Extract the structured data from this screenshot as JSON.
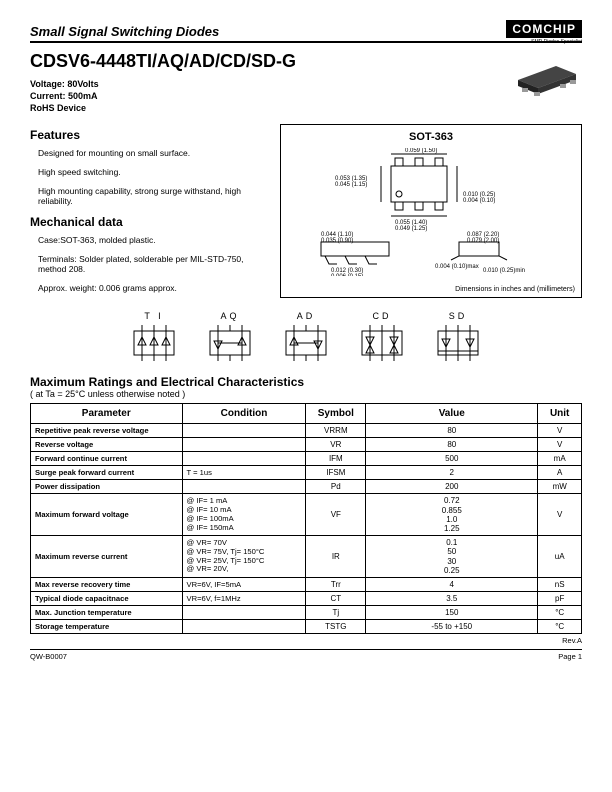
{
  "brand": {
    "logo": "COMCHIP",
    "tagline": "SMD Diodes Specialist"
  },
  "category": "Small Signal Switching Diodes",
  "part_number": "CDSV6-4448TI/AQ/AD/CD/SD-G",
  "specs": {
    "voltage": "Voltage: 80Volts",
    "current": "Current: 500mA",
    "rohs": "RoHS Device"
  },
  "features": {
    "heading": "Features",
    "items": [
      "Designed for mounting on small surface.",
      "High speed switching.",
      "High mounting capability, strong surge withstand, high reliability."
    ]
  },
  "mech": {
    "heading": "Mechanical data",
    "items": [
      "Case:SOT-363,  molded plastic.",
      "Terminals: Solder plated, solderable per MIL-STD-750, method 208.",
      "Approx. weight: 0.006 grams approx."
    ]
  },
  "package": {
    "title": "SOT-363",
    "footnote": "Dimensions in inches and (millimeters)",
    "dims": {
      "top_w": "0.067 (1.70)\n0.059 (1.50)",
      "left_h": "0.053 (1.35)\n0.045 (1.15)",
      "bot_w": "0.055 (1.40)\n0.049 (1.25)",
      "right_p": "0.010 (0.25)\n0.004 (0.10)",
      "side_l1": "0.044 (1.10)\n0.035 (0.90)",
      "side_l2": "0.087 (2.20)\n0.079 (2.00)",
      "foot1": "0.012 (0.30)\n0.006 (0.15)",
      "foot2": "0.004 (0.10)max\n0.010 (0.25)min"
    }
  },
  "variants": {
    "labels": [
      "T I",
      "AQ",
      "AD",
      "CD",
      "SD"
    ]
  },
  "ratings": {
    "heading": "Maximum Ratings and Electrical Characteristics",
    "sub": "( at Ta = 25°C unless otherwise noted )",
    "columns": [
      "Parameter",
      "Condition",
      "Symbol",
      "Value",
      "Unit"
    ],
    "rows": [
      {
        "p": "Repetitive peak reverse voltage",
        "c": "",
        "s": "VRRM",
        "v": "80",
        "u": "V"
      },
      {
        "p": "Reverse voltage",
        "c": "",
        "s": "VR",
        "v": "80",
        "u": "V"
      },
      {
        "p": "Forward continue current",
        "c": "",
        "s": "IFM",
        "v": "500",
        "u": "mA"
      },
      {
        "p": "Surge peak forward current",
        "c": "T = 1us",
        "s": "IFSM",
        "v": "2",
        "u": "A"
      },
      {
        "p": "Power dissipation",
        "c": "",
        "s": "Pd",
        "v": "200",
        "u": "mW"
      },
      {
        "p": "Maximum forward voltage",
        "c": "@ IF= 1 mA\n@ IF= 10 mA\n@ IF= 100mA\n@ IF= 150mA",
        "s": "VF",
        "v": "0.72\n0.855\n1.0\n1.25",
        "u": "V"
      },
      {
        "p": "Maximum reverse current",
        "c": "@ VR= 70V\n@ VR= 75V, Tj= 150°C\n@ VR= 25V, Tj= 150°C\n@ VR= 20V,",
        "s": "IR",
        "v": "0.1\n50\n30\n0.25",
        "u": "uA"
      },
      {
        "p": "Max reverse recovery time",
        "c": "VR=6V, IF=5mA",
        "s": "Trr",
        "v": "4",
        "u": "nS"
      },
      {
        "p": "Typical diode capacitnace",
        "c": "VR=6V, f=1MHz",
        "s": "CT",
        "v": "3.5",
        "u": "pF"
      },
      {
        "p": "Max. Junction  temperature",
        "c": "",
        "s": "Tj",
        "v": "150",
        "u": "°C"
      },
      {
        "p": "Storage temperature",
        "c": "",
        "s": "TSTG",
        "v": "-55 to +150",
        "u": "°C"
      }
    ]
  },
  "footer": {
    "doc": "QW-B0007",
    "page": "Page 1",
    "rev": "Rev.A"
  }
}
